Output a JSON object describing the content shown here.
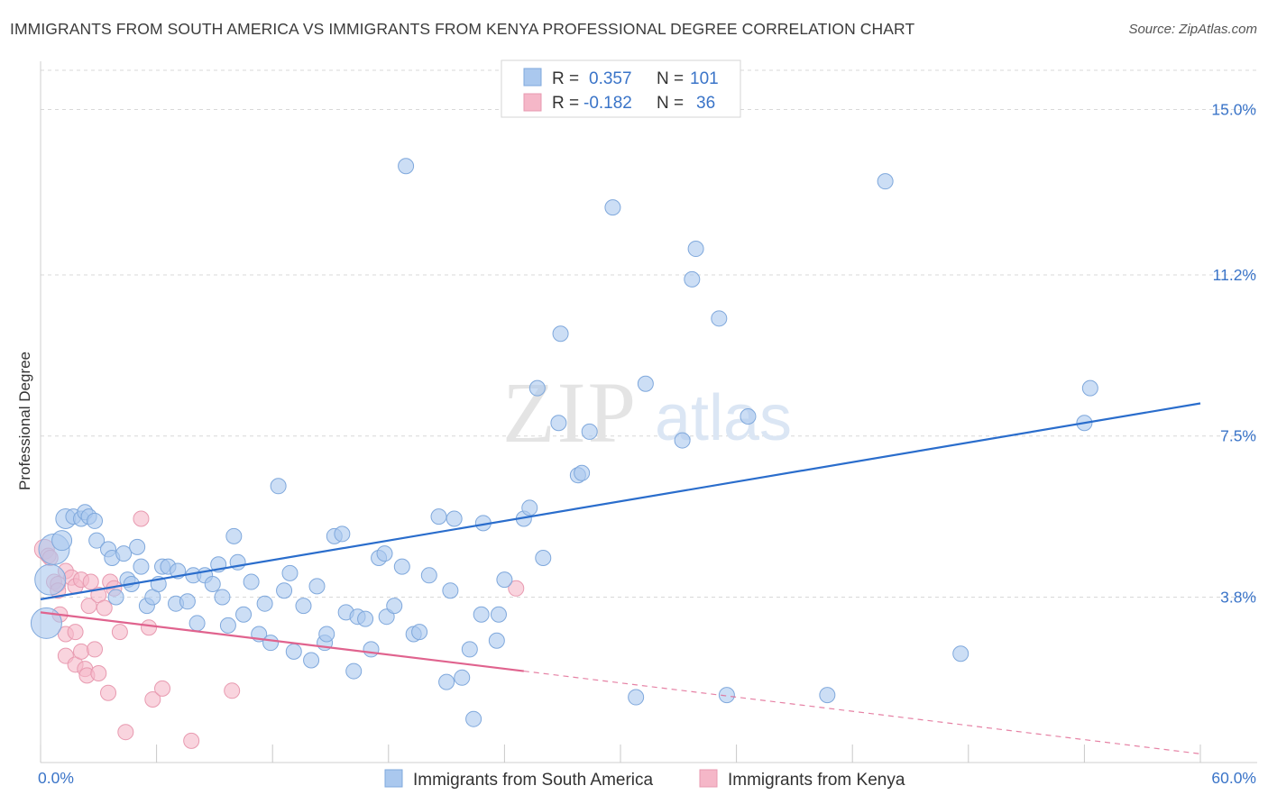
{
  "header": {
    "title": "IMMIGRANTS FROM SOUTH AMERICA VS IMMIGRANTS FROM KENYA PROFESSIONAL DEGREE CORRELATION CHART",
    "source": "Source: ZipAtlas.com"
  },
  "watermark": {
    "zip": "ZIP",
    "atlas": "atlas"
  },
  "legend_top": {
    "rows": [
      {
        "r_label": "R =",
        "r_value": "0.357",
        "n_label": "N =",
        "n_value": "101"
      },
      {
        "r_label": "R =",
        "r_value": "-0.182",
        "n_label": "N =",
        "n_value": "36"
      }
    ]
  },
  "colors": {
    "blue_fill": "#aac8ee",
    "blue_stroke": "#7fa8dc",
    "blue_line": "#2a6dcc",
    "pink_fill": "#f5b7c8",
    "pink_stroke": "#e89ab0",
    "pink_line": "#e0638e",
    "tick_label": "#3a74c8",
    "grid": "#d8d8d8"
  },
  "chart_data": {
    "type": "scatter",
    "title": "IMMIGRANTS FROM SOUTH AMERICA VS IMMIGRANTS FROM KENYA PROFESSIONAL DEGREE CORRELATION CHART",
    "xlabel": "",
    "ylabel": "Professional Degree",
    "xlim": [
      0,
      60
    ],
    "ylim": [
      0,
      15.9
    ],
    "x_tick_labels": [
      "0.0%",
      "60.0%"
    ],
    "y_ticks": [
      3.8,
      7.5,
      11.2,
      15.0
    ],
    "y_tick_labels": [
      "3.8%",
      "7.5%",
      "11.2%",
      "15.0%"
    ],
    "grid": true,
    "legend_position": "bottom",
    "series": [
      {
        "name": "Immigrants from South America",
        "color": "#aac8ee",
        "r": 0.357,
        "n": 101,
        "trend": {
          "x": [
            0,
            60
          ],
          "y": [
            3.75,
            8.25
          ]
        },
        "points": [
          [
            0.3,
            3.2,
            "l"
          ],
          [
            0.5,
            4.2,
            "l"
          ],
          [
            0.7,
            4.9,
            "l"
          ],
          [
            1.1,
            5.1,
            "m"
          ],
          [
            1.3,
            5.6,
            "m"
          ],
          [
            1.7,
            5.65
          ],
          [
            2.1,
            5.6
          ],
          [
            2.3,
            5.75
          ],
          [
            2.5,
            5.65
          ],
          [
            2.8,
            5.55
          ],
          [
            2.9,
            5.1
          ],
          [
            3.5,
            4.9
          ],
          [
            3.7,
            4.7
          ],
          [
            3.9,
            3.8
          ],
          [
            4.3,
            4.8
          ],
          [
            4.5,
            4.2
          ],
          [
            4.7,
            4.1
          ],
          [
            5.0,
            4.95
          ],
          [
            5.2,
            4.5
          ],
          [
            5.5,
            3.6
          ],
          [
            5.8,
            3.8
          ],
          [
            6.1,
            4.1
          ],
          [
            6.3,
            4.5
          ],
          [
            6.6,
            4.5
          ],
          [
            7.0,
            3.65
          ],
          [
            7.1,
            4.4
          ],
          [
            7.6,
            3.7
          ],
          [
            7.9,
            4.3
          ],
          [
            8.1,
            3.2
          ],
          [
            8.5,
            4.3
          ],
          [
            8.9,
            4.1
          ],
          [
            9.2,
            4.55
          ],
          [
            9.4,
            3.8
          ],
          [
            9.7,
            3.15
          ],
          [
            10.0,
            5.2
          ],
          [
            10.2,
            4.6
          ],
          [
            10.5,
            3.4
          ],
          [
            10.9,
            4.15
          ],
          [
            11.3,
            2.95
          ],
          [
            11.6,
            3.65
          ],
          [
            11.9,
            2.75
          ],
          [
            12.3,
            6.35
          ],
          [
            12.6,
            3.95
          ],
          [
            12.9,
            4.35
          ],
          [
            13.1,
            2.55
          ],
          [
            13.6,
            3.6
          ],
          [
            14.0,
            2.35
          ],
          [
            14.3,
            4.05
          ],
          [
            14.7,
            2.75
          ],
          [
            14.8,
            2.95
          ],
          [
            15.2,
            5.2
          ],
          [
            15.6,
            5.25
          ],
          [
            15.8,
            3.45
          ],
          [
            16.2,
            2.1
          ],
          [
            16.4,
            3.35
          ],
          [
            16.8,
            3.3
          ],
          [
            17.1,
            2.6
          ],
          [
            17.5,
            4.7
          ],
          [
            17.8,
            4.8
          ],
          [
            17.9,
            3.35
          ],
          [
            18.3,
            3.6
          ],
          [
            18.7,
            4.5
          ],
          [
            18.9,
            13.7
          ],
          [
            19.3,
            2.95
          ],
          [
            19.6,
            3.0
          ],
          [
            20.1,
            4.3
          ],
          [
            20.6,
            5.65
          ],
          [
            21.0,
            1.85
          ],
          [
            21.2,
            3.95
          ],
          [
            21.4,
            5.6
          ],
          [
            21.8,
            1.95
          ],
          [
            22.2,
            2.6
          ],
          [
            22.4,
            1.0
          ],
          [
            22.8,
            3.4
          ],
          [
            22.9,
            5.5
          ],
          [
            23.6,
            2.8
          ],
          [
            23.7,
            3.4
          ],
          [
            24.0,
            4.2
          ],
          [
            25.0,
            5.6
          ],
          [
            25.3,
            5.85
          ],
          [
            25.7,
            8.6
          ],
          [
            26.0,
            4.7
          ],
          [
            26.8,
            7.8
          ],
          [
            26.9,
            9.85
          ],
          [
            27.8,
            6.6
          ],
          [
            28.0,
            6.65
          ],
          [
            28.4,
            7.6
          ],
          [
            29.6,
            12.75
          ],
          [
            30.8,
            1.5
          ],
          [
            31.3,
            8.7
          ],
          [
            33.2,
            7.4
          ],
          [
            33.7,
            11.1
          ],
          [
            33.9,
            11.8
          ],
          [
            35.1,
            10.2
          ],
          [
            35.5,
            1.55
          ],
          [
            36.6,
            7.95
          ],
          [
            40.7,
            1.55
          ],
          [
            43.7,
            13.35
          ],
          [
            47.6,
            2.5
          ],
          [
            54.0,
            7.8
          ],
          [
            54.3,
            8.6
          ]
        ]
      },
      {
        "name": "Immigrants from Kenya",
        "color": "#f5b7c8",
        "r": -0.182,
        "n": 36,
        "trend": {
          "x": [
            0,
            25
          ],
          "y": [
            3.45,
            2.1
          ]
        },
        "trend_extension": {
          "x": [
            25,
            60
          ],
          "y": [
            2.1,
            0.2
          ]
        },
        "points": [
          [
            0.2,
            4.9,
            "m"
          ],
          [
            0.4,
            4.75
          ],
          [
            0.5,
            4.7
          ],
          [
            0.7,
            4.15
          ],
          [
            0.9,
            4.1
          ],
          [
            0.9,
            3.95
          ],
          [
            1.0,
            3.4
          ],
          [
            1.3,
            4.4
          ],
          [
            1.3,
            2.95
          ],
          [
            1.3,
            2.45
          ],
          [
            1.6,
            4.25
          ],
          [
            1.8,
            4.05
          ],
          [
            1.8,
            3.0
          ],
          [
            1.8,
            2.25
          ],
          [
            2.1,
            4.2
          ],
          [
            2.1,
            2.55
          ],
          [
            2.3,
            2.15
          ],
          [
            2.4,
            2.0
          ],
          [
            2.5,
            3.6
          ],
          [
            2.6,
            4.15
          ],
          [
            2.8,
            2.6
          ],
          [
            3.0,
            2.05
          ],
          [
            3.0,
            3.85
          ],
          [
            3.3,
            3.55
          ],
          [
            3.5,
            1.6
          ],
          [
            3.6,
            4.15
          ],
          [
            3.8,
            4.0
          ],
          [
            4.1,
            3.0
          ],
          [
            4.4,
            0.7
          ],
          [
            5.2,
            5.6
          ],
          [
            5.6,
            3.1
          ],
          [
            5.8,
            1.45
          ],
          [
            6.3,
            1.7
          ],
          [
            7.8,
            0.5
          ],
          [
            9.9,
            1.65
          ],
          [
            24.6,
            4.0
          ]
        ]
      }
    ]
  },
  "legend_bottom": {
    "items": [
      {
        "label": "Immigrants from South America"
      },
      {
        "label": "Immigrants from Kenya"
      }
    ]
  }
}
